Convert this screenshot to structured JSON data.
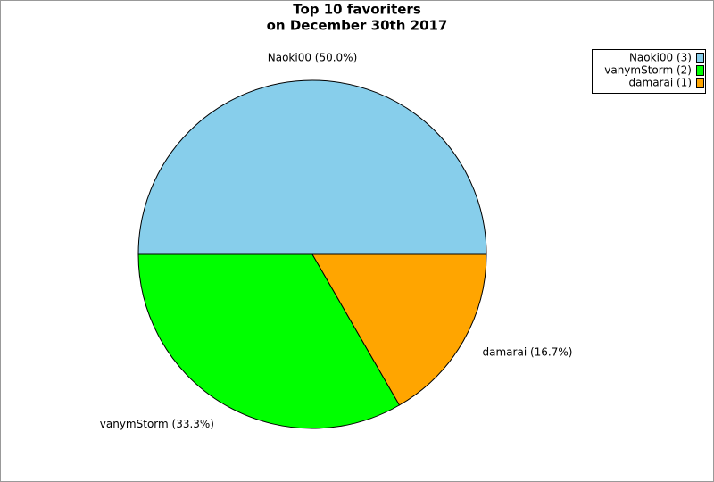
{
  "chart_data": {
    "type": "pie",
    "title": "Top 10 favoriters",
    "subtitle": "on December 30th 2017",
    "categories": [
      "Naoki00",
      "vanymStorm",
      "damarai"
    ],
    "values": [
      3,
      2,
      1
    ],
    "value_labels": [
      "Naoki00 (50.0%)",
      "vanymStorm (33.3%)",
      "damarai (16.7%)"
    ],
    "legend_labels": [
      "Naoki00 (3)",
      "vanymStorm (2)",
      "damarai (1)"
    ],
    "colors": [
      "#87ceeb",
      "#00ff00",
      "#ffa500"
    ],
    "legend": "top-right"
  }
}
